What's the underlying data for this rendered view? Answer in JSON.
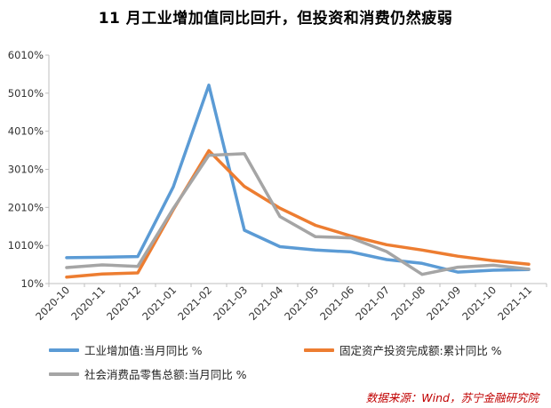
{
  "title": "11 月工业增加值同比回升，但投资和消费仍然疲弱",
  "source": "数据来源：Wind，苏宁金融研究院",
  "chart_data": {
    "type": "line",
    "categories": [
      "2020-10",
      "2020-11",
      "2020-12",
      "2021-01",
      "2021-02",
      "2021-03",
      "2021-04",
      "2021-05",
      "2021-06",
      "2021-07",
      "2021-08",
      "2021-09",
      "2021-10",
      "2021-11"
    ],
    "y_ticks": [
      "10%",
      "1010%",
      "2010%",
      "3010%",
      "4010%",
      "5010%",
      "6010%"
    ],
    "ylim": [
      10,
      6010
    ],
    "grid": false,
    "legend_position": "bottom",
    "series": [
      {
        "name": "工业增加值:当月同比 %",
        "color": "#5b9bd5",
        "values": [
          690,
          700,
          720,
          2550,
          5220,
          1410,
          980,
          890,
          840,
          640,
          540,
          310,
          360,
          380
        ]
      },
      {
        "name": "固定资产投资完成额:累计同比 %",
        "color": "#ed7d31",
        "values": [
          180,
          260,
          290,
          1950,
          3500,
          2560,
          1990,
          1540,
          1260,
          1030,
          890,
          730,
          610,
          520
        ]
      },
      {
        "name": "社会消费品零售总额:当月同比 %",
        "color": "#a5a5a5",
        "values": [
          430,
          500,
          460,
          1980,
          3380,
          3420,
          1770,
          1240,
          1210,
          850,
          250,
          440,
          490,
          390
        ]
      }
    ]
  }
}
